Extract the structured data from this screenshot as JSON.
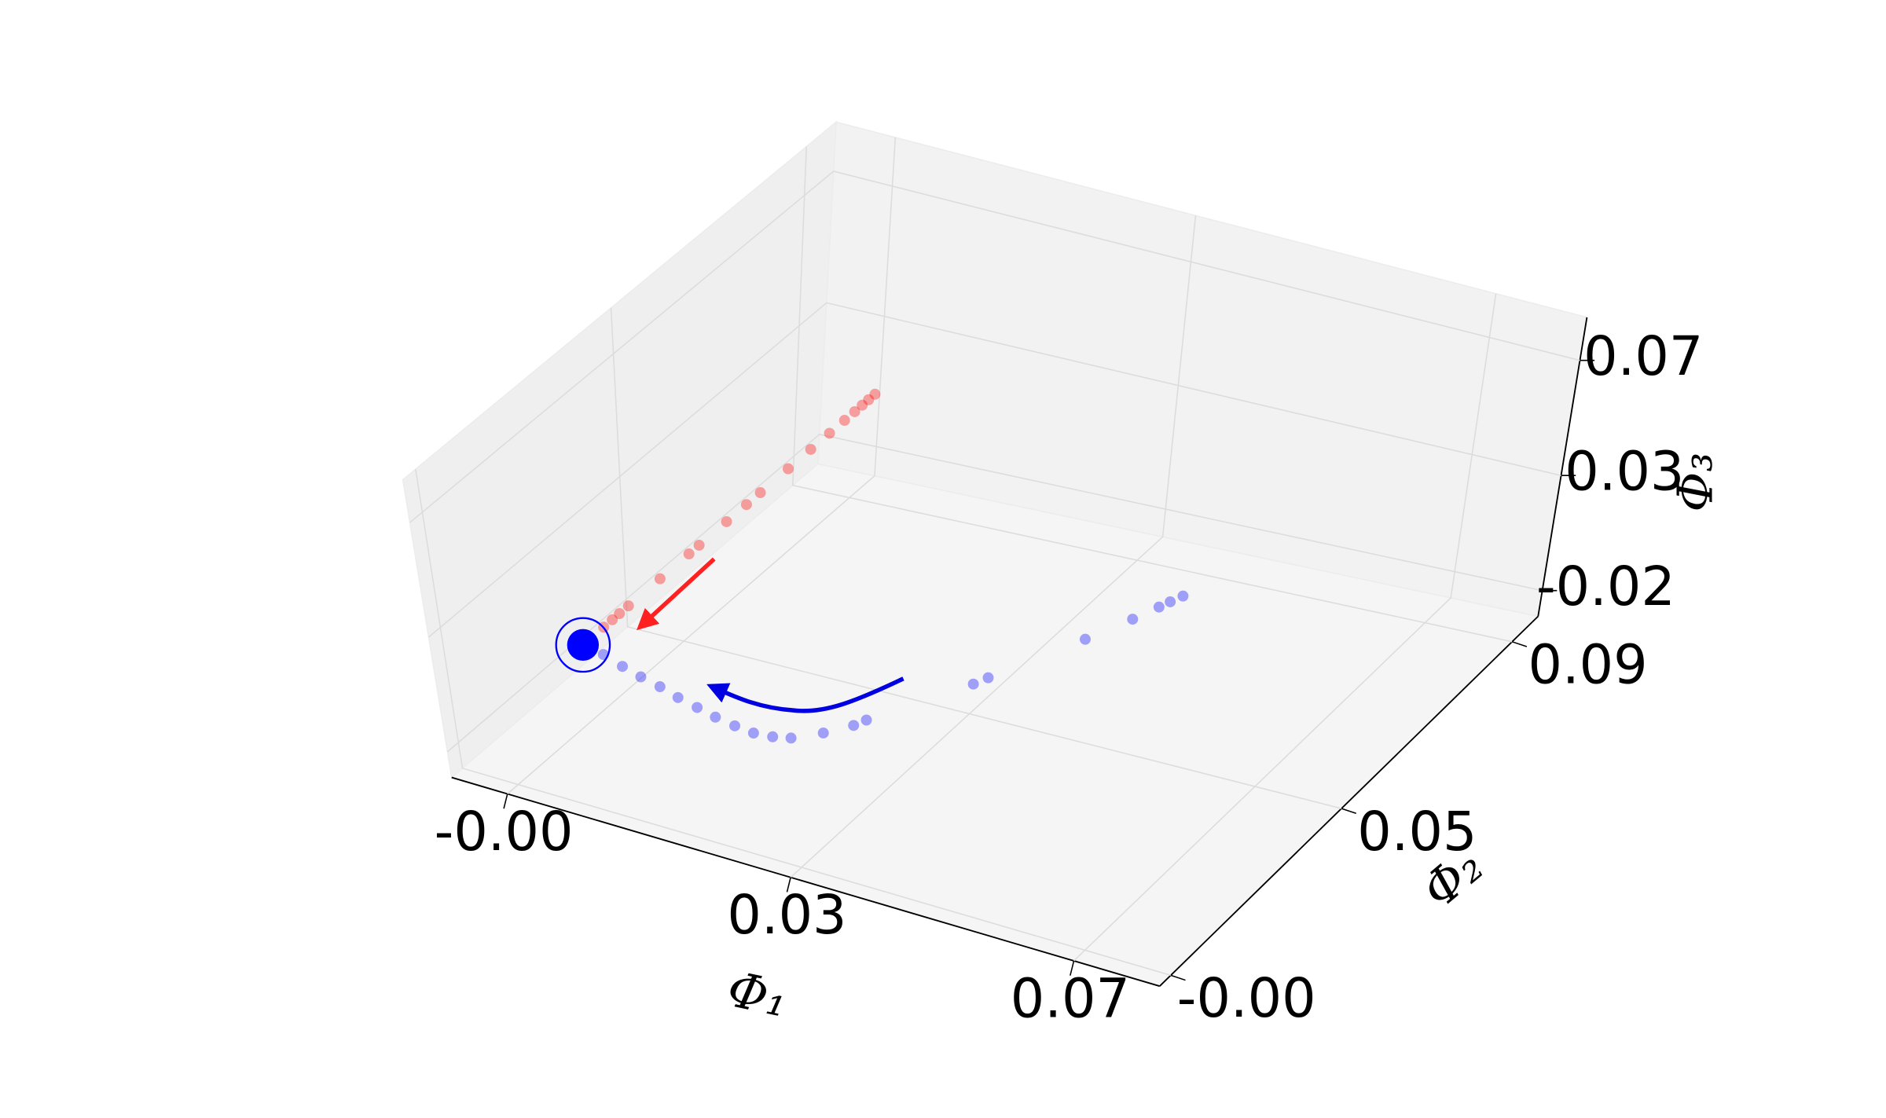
{
  "chart_data": {
    "type": "scatter3d",
    "xlabel": "Φ₁",
    "ylabel": "Φ₂",
    "zlabel": "Φ₃",
    "xlim": [
      -0.0065,
      0.076
    ],
    "ylim": [
      -0.003,
      0.099
    ],
    "zlim": [
      -0.0303,
      0.0892
    ],
    "xticks": [
      {
        "value": 0,
        "label": "-0.00"
      },
      {
        "value": 0.033,
        "label": "0.03"
      },
      {
        "value": 0.066,
        "label": "0.07"
      }
    ],
    "yticks": [
      {
        "value": 0,
        "label": "-0.00"
      },
      {
        "value": 0.046,
        "label": "0.05"
      },
      {
        "value": 0.092,
        "label": "0.09"
      }
    ],
    "zticks": [
      {
        "value": -0.02,
        "label": "-0.02"
      },
      {
        "value": 0.026,
        "label": "0.03"
      },
      {
        "value": 0.072,
        "label": "0.07"
      }
    ],
    "grid": true,
    "series": [
      {
        "color": "#ff0000",
        "x": [
          0,
          0,
          0,
          0,
          0,
          0,
          0,
          0,
          0,
          0,
          0,
          0,
          0,
          0,
          0,
          0,
          0,
          0
        ],
        "y": [
          0.0255,
          0.0278,
          0.0297,
          0.0321,
          0.0405,
          0.0482,
          0.0509,
          0.0582,
          0.0635,
          0.0672,
          0.0746,
          0.0806,
          0.0856,
          0.0896,
          0.0923,
          0.0943,
          0.096,
          0.0977
        ],
        "z": [
          0,
          0,
          0,
          0,
          0,
          0,
          0,
          0,
          0,
          0,
          0,
          0,
          0,
          0,
          0,
          0,
          0,
          0
        ]
      },
      {
        "color": "#0000ff",
        "x": [
          0.0,
          0.0027,
          0.0055,
          0.0081,
          0.0107,
          0.0133,
          0.0159,
          0.0184,
          0.0209,
          0.0232,
          0.0252,
          0.0269,
          0.0292,
          0.0311,
          0.0317,
          0.0376,
          0.0383,
          0.0432,
          0.0455,
          0.0467,
          0.0472,
          0.0478
        ],
        "y": [
          0.02,
          0.0191,
          0.0176,
          0.0164,
          0.0154,
          0.0141,
          0.0131,
          0.0121,
          0.0114,
          0.011,
          0.0114,
          0.0123,
          0.0155,
          0.0191,
          0.0211,
          0.0357,
          0.038,
          0.0523,
          0.0595,
          0.0637,
          0.0655,
          0.0675
        ],
        "z": [
          0,
          0,
          0,
          0,
          0,
          0,
          0,
          0,
          0,
          0,
          0,
          0,
          0,
          0,
          0,
          0,
          0,
          0,
          0,
          0,
          0,
          0
        ]
      }
    ]
  }
}
